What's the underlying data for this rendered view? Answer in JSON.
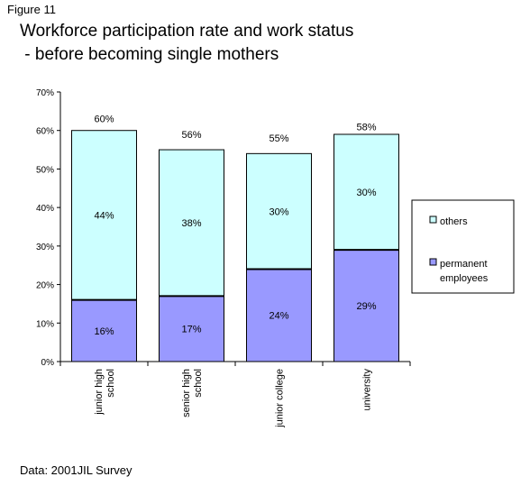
{
  "figure_label": "Figure 11",
  "title_line1": "Workforce participation rate and work status",
  "title_line2": " - before becoming single mothers",
  "source_note": "Data: 2001JIL Survey",
  "colors": {
    "others": "#ccffff",
    "permanent": "#9999ff",
    "border": "#000000"
  },
  "chart_data": {
    "type": "bar",
    "stacked": true,
    "categories": [
      [
        "junior high",
        "school"
      ],
      [
        "senior high",
        "school"
      ],
      [
        "junior college"
      ],
      [
        "university"
      ]
    ],
    "series": [
      {
        "name": "permanent employees",
        "legend_lines": [
          "permanent",
          "employees"
        ],
        "values": [
          16,
          17,
          24,
          29
        ],
        "labels": [
          "16%",
          "17%",
          "24%",
          "29%"
        ],
        "color": "#9999ff"
      },
      {
        "name": "others",
        "legend_lines": [
          "others"
        ],
        "values": [
          44,
          38,
          30,
          30
        ],
        "labels": [
          "44%",
          "38%",
          "30%",
          "30%"
        ],
        "color": "#ccffff"
      }
    ],
    "totals": [
      60,
      56,
      55,
      58
    ],
    "total_labels": [
      "60%",
      "56%",
      "55%",
      "58%"
    ],
    "ylim": [
      0,
      70
    ],
    "yticks": [
      0,
      10,
      20,
      30,
      40,
      50,
      60,
      70
    ],
    "ytick_labels": [
      "0%",
      "10%",
      "20%",
      "30%",
      "40%",
      "50%",
      "60%",
      "70%"
    ],
    "legend_position": "right",
    "grid": false
  }
}
